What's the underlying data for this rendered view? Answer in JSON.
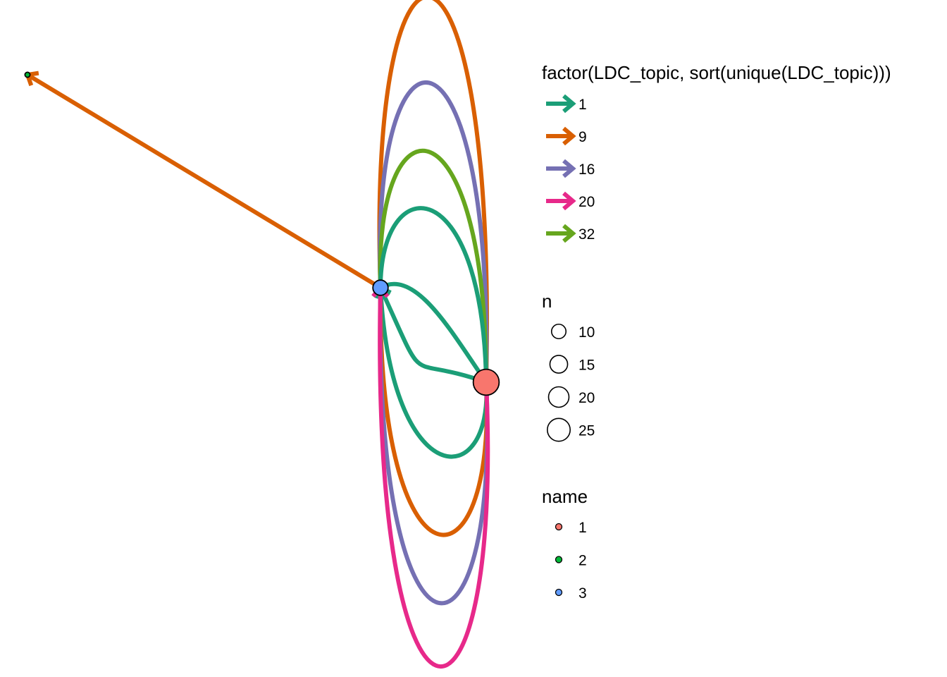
{
  "colors": {
    "topic_1": "#1B9E77",
    "topic_9": "#D95F02",
    "topic_16": "#7570B3",
    "topic_20": "#E7298A",
    "topic_32": "#66A61E",
    "node_1": "#F8766D",
    "node_2": "#00BA38",
    "node_3": "#619CFF"
  },
  "legend_topic": {
    "title": "factor(LDC_topic, sort(unique(LDC_topic)))",
    "items": [
      {
        "label": "1",
        "color": "#1B9E77"
      },
      {
        "label": "9",
        "color": "#D95F02"
      },
      {
        "label": "16",
        "color": "#7570B3"
      },
      {
        "label": "20",
        "color": "#E7298A"
      },
      {
        "label": "32",
        "color": "#66A61E"
      }
    ]
  },
  "legend_size": {
    "title": "n",
    "items": [
      {
        "label": "10",
        "value": 10
      },
      {
        "label": "15",
        "value": 15
      },
      {
        "label": "20",
        "value": 20
      },
      {
        "label": "25",
        "value": 25
      }
    ]
  },
  "legend_name": {
    "title": "name",
    "items": [
      {
        "label": "1",
        "color": "#F8766D"
      },
      {
        "label": "2",
        "color": "#00BA38"
      },
      {
        "label": "3",
        "color": "#619CFF"
      }
    ]
  },
  "graph": {
    "nodes": [
      {
        "name": "1",
        "color": "#F8766D",
        "n": 26
      },
      {
        "name": "2",
        "color": "#00BA38",
        "n": 1
      },
      {
        "name": "3",
        "color": "#619CFF",
        "n": 9
      }
    ],
    "edges": [
      {
        "from": "3",
        "to": "2",
        "topic": "9"
      },
      {
        "from": "3",
        "to": "1",
        "topic": "9"
      },
      {
        "from": "3",
        "to": "1",
        "topic": "16"
      },
      {
        "from": "3",
        "to": "1",
        "topic": "32"
      },
      {
        "from": "3",
        "to": "1",
        "topic": "1"
      },
      {
        "from": "3",
        "to": "1",
        "topic": "1"
      },
      {
        "from": "1",
        "to": "3",
        "topic": "1"
      },
      {
        "from": "1",
        "to": "3",
        "topic": "1"
      },
      {
        "from": "1",
        "to": "3",
        "topic": "9"
      },
      {
        "from": "1",
        "to": "3",
        "topic": "16"
      },
      {
        "from": "1",
        "to": "3",
        "topic": "20"
      }
    ]
  }
}
